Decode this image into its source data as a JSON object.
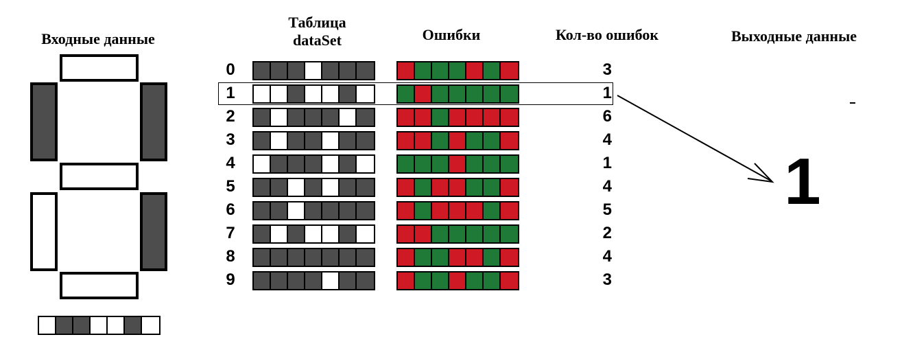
{
  "headers": {
    "input": "Входные данные",
    "table": "Таблица\ndataSet",
    "errors": "Ошибки",
    "count": "Кол-во ошибок",
    "output": "Выходные данные"
  },
  "colors": {
    "segment_on": "#4d4d4d",
    "segment_off": "#ffffff",
    "error": "#cf1a26",
    "match": "#1f7a38",
    "outline": "#000000"
  },
  "input_display": {
    "segments": {
      "a": 0,
      "b": 1,
      "c": 1,
      "d": 0,
      "e": 0,
      "f": 1,
      "g": 0
    },
    "bits": [
      0,
      1,
      1,
      0,
      0,
      1,
      0
    ]
  },
  "dataset": [
    {
      "label": "0",
      "bits": [
        1,
        1,
        1,
        0,
        1,
        1,
        1
      ],
      "errors": [
        1,
        0,
        0,
        0,
        1,
        0,
        1
      ],
      "count": "3"
    },
    {
      "label": "1",
      "bits": [
        0,
        0,
        1,
        0,
        0,
        1,
        0
      ],
      "errors": [
        0,
        1,
        0,
        0,
        0,
        0,
        0
      ],
      "count": "1"
    },
    {
      "label": "2",
      "bits": [
        1,
        0,
        1,
        1,
        1,
        0,
        1
      ],
      "errors": [
        1,
        1,
        0,
        1,
        1,
        1,
        1
      ],
      "count": "6"
    },
    {
      "label": "3",
      "bits": [
        1,
        0,
        1,
        1,
        0,
        1,
        1
      ],
      "errors": [
        1,
        1,
        0,
        1,
        0,
        0,
        1
      ],
      "count": "4"
    },
    {
      "label": "4",
      "bits": [
        0,
        1,
        1,
        1,
        0,
        1,
        0
      ],
      "errors": [
        0,
        0,
        0,
        1,
        0,
        0,
        0
      ],
      "count": "1"
    },
    {
      "label": "5",
      "bits": [
        1,
        1,
        0,
        1,
        0,
        1,
        1
      ],
      "errors": [
        1,
        0,
        1,
        1,
        0,
        0,
        1
      ],
      "count": "4"
    },
    {
      "label": "6",
      "bits": [
        1,
        1,
        0,
        1,
        1,
        1,
        1
      ],
      "errors": [
        1,
        0,
        1,
        1,
        1,
        0,
        1
      ],
      "count": "5"
    },
    {
      "label": "7",
      "bits": [
        1,
        0,
        1,
        0,
        0,
        1,
        0
      ],
      "errors": [
        1,
        1,
        0,
        0,
        0,
        0,
        0
      ],
      "count": "2"
    },
    {
      "label": "8",
      "bits": [
        1,
        1,
        1,
        1,
        1,
        1,
        1
      ],
      "errors": [
        1,
        0,
        0,
        1,
        1,
        0,
        1
      ],
      "count": "4"
    },
    {
      "label": "9",
      "bits": [
        1,
        1,
        1,
        1,
        0,
        1,
        1
      ],
      "errors": [
        1,
        0,
        0,
        1,
        0,
        0,
        1
      ],
      "count": "3"
    }
  ],
  "selected_index": 1,
  "output": {
    "value": "1"
  }
}
